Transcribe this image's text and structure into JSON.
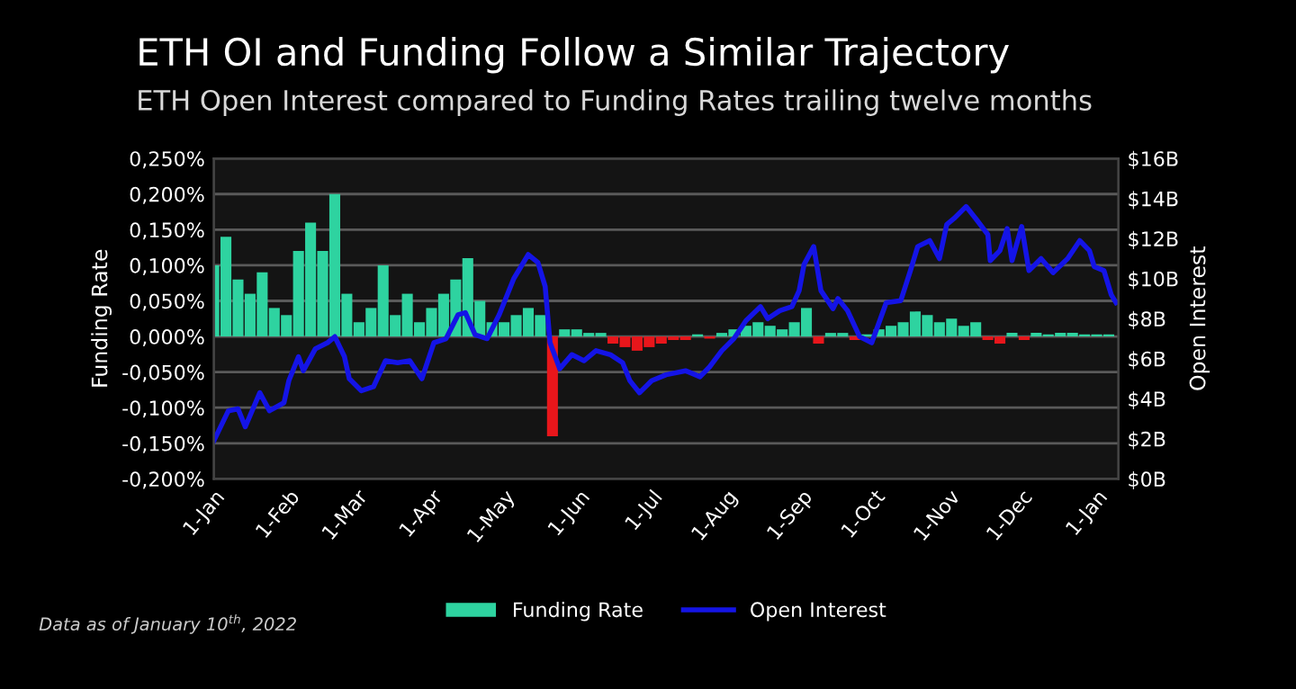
{
  "chart_data": {
    "type": "bar",
    "title": "ETH OI and Funding Follow a Similar Trajectory",
    "subtitle": "ETH Open Interest compared to Funding Rates trailing twelve months",
    "ylabel": "Funding Rate",
    "y2label": "Open Interest",
    "annotations": [
      "Data as of January 10$^{th}$, 2022"
    ],
    "xlim": [
      "2021-01-01",
      "2022-01-10"
    ],
    "xticks": [
      {
        "value": "2021-01-01",
        "label": "1-Jan"
      },
      {
        "value": "2021-02-01",
        "label": "1-Feb"
      },
      {
        "value": "2021-03-01",
        "label": "1-Mar"
      },
      {
        "value": "2021-04-01",
        "label": "1-Apr"
      },
      {
        "value": "2021-05-01",
        "label": "1-May"
      },
      {
        "value": "2021-06-01",
        "label": "1-Jun"
      },
      {
        "value": "2021-07-01",
        "label": "1-Jul"
      },
      {
        "value": "2021-08-01",
        "label": "1-Aug"
      },
      {
        "value": "2021-09-01",
        "label": "1-Sep"
      },
      {
        "value": "2021-10-01",
        "label": "1-Oct"
      },
      {
        "value": "2021-11-01",
        "label": "1-Nov"
      },
      {
        "value": "2021-12-01",
        "label": "1-Dec"
      },
      {
        "value": "2022-01-01",
        "label": "1-Jan"
      }
    ],
    "ylim": [
      -0.2,
      0.25
    ],
    "yticks": [
      {
        "value": -0.2,
        "label": "-0,200%"
      },
      {
        "value": -0.15,
        "label": "-0,150%"
      },
      {
        "value": -0.1,
        "label": "-0,100%"
      },
      {
        "value": -0.05,
        "label": "-0,050%"
      },
      {
        "value": 0,
        "label": "0,000%"
      },
      {
        "value": 0.05,
        "label": "0,050%"
      },
      {
        "value": 0.1,
        "label": "0,100%"
      },
      {
        "value": 0.15,
        "label": "0,150%"
      },
      {
        "value": 0.2,
        "label": "0,200%"
      },
      {
        "value": 0.25,
        "label": "0,250%"
      }
    ],
    "y2lim": [
      0,
      16
    ],
    "y2ticks": [
      {
        "value": 0,
        "label": "$0B"
      },
      {
        "value": 2,
        "label": "$2B"
      },
      {
        "value": 4,
        "label": "$4B"
      },
      {
        "value": 6,
        "label": "$6B"
      },
      {
        "value": 8,
        "label": "$8B"
      },
      {
        "value": 10,
        "label": "$10B"
      },
      {
        "value": 12,
        "label": "$12B"
      },
      {
        "value": 14,
        "label": "$14B"
      },
      {
        "value": 16,
        "label": "$16B"
      }
    ],
    "grid": "y",
    "legend": "bottom",
    "series": [
      {
        "name": "Funding Rate",
        "color": "#2ed3a0",
        "x": [
          "2021-01-01",
          "2021-01-06",
          "2021-01-11",
          "2021-01-16",
          "2021-01-21",
          "2021-01-26",
          "2021-01-31",
          "2021-02-05",
          "2021-02-10",
          "2021-02-15",
          "2021-02-20",
          "2021-02-25",
          "2021-03-02",
          "2021-03-07",
          "2021-03-12",
          "2021-03-17",
          "2021-03-22",
          "2021-03-27",
          "2021-04-01",
          "2021-04-06",
          "2021-04-11",
          "2021-04-16",
          "2021-04-21",
          "2021-04-26",
          "2021-05-01",
          "2021-05-06",
          "2021-05-11",
          "2021-05-16",
          "2021-05-21",
          "2021-05-26",
          "2021-05-31",
          "2021-06-05",
          "2021-06-10",
          "2021-06-15",
          "2021-06-20",
          "2021-06-25",
          "2021-06-30",
          "2021-07-05",
          "2021-07-10",
          "2021-07-15",
          "2021-07-20",
          "2021-07-25",
          "2021-07-30",
          "2021-08-04",
          "2021-08-09",
          "2021-08-14",
          "2021-08-19",
          "2021-08-24",
          "2021-08-29",
          "2021-09-03",
          "2021-09-08",
          "2021-09-13",
          "2021-09-18",
          "2021-09-23",
          "2021-09-28",
          "2021-10-03",
          "2021-10-08",
          "2021-10-13",
          "2021-10-18",
          "2021-10-23",
          "2021-10-28",
          "2021-11-02",
          "2021-11-07",
          "2021-11-12",
          "2021-11-17",
          "2021-11-22",
          "2021-11-27",
          "2021-12-02",
          "2021-12-07",
          "2021-12-12",
          "2021-12-17",
          "2021-12-22",
          "2021-12-27",
          "2022-01-01",
          "2022-01-06"
        ],
        "values": [
          0.1,
          0.14,
          0.08,
          0.06,
          0.09,
          0.04,
          0.03,
          0.12,
          0.16,
          0.12,
          0.2,
          0.06,
          0.02,
          0.04,
          0.1,
          0.03,
          0.06,
          0.02,
          0.04,
          0.06,
          0.08,
          0.11,
          0.05,
          0.02,
          0.02,
          0.03,
          0.04,
          0.03,
          -0.14,
          0.01,
          0.01,
          0.005,
          0.005,
          -0.01,
          -0.015,
          -0.02,
          -0.015,
          -0.01,
          -0.005,
          -0.005,
          0.003,
          -0.003,
          0.005,
          0.01,
          0.015,
          0.02,
          0.015,
          0.01,
          0.02,
          0.04,
          -0.01,
          0.005,
          0.005,
          -0.005,
          0.003,
          0.01,
          0.015,
          0.02,
          0.035,
          0.03,
          0.02,
          0.025,
          0.015,
          0.02,
          -0.005,
          -0.01,
          0.005,
          -0.005,
          0.005,
          0.003,
          0.005,
          0.005,
          0.003,
          0.003,
          0.003
        ],
        "colors": [
          "#2ed3a0",
          "#2ed3a0",
          "#2ed3a0",
          "#2ed3a0",
          "#2ed3a0",
          "#2ed3a0",
          "#2ed3a0",
          "#2ed3a0",
          "#2ed3a0",
          "#2ed3a0",
          "#2ed3a0",
          "#2ed3a0",
          "#2ed3a0",
          "#2ed3a0",
          "#2ed3a0",
          "#2ed3a0",
          "#2ed3a0",
          "#2ed3a0",
          "#2ed3a0",
          "#2ed3a0",
          "#2ed3a0",
          "#2ed3a0",
          "#2ed3a0",
          "#2ed3a0",
          "#2ed3a0",
          "#2ed3a0",
          "#2ed3a0",
          "#2ed3a0",
          "#e8161b",
          "#2ed3a0",
          "#2ed3a0",
          "#2ed3a0",
          "#2ed3a0",
          "#e8161b",
          "#e8161b",
          "#e8161b",
          "#e8161b",
          "#e8161b",
          "#e8161b",
          "#e8161b",
          "#2ed3a0",
          "#e8161b",
          "#2ed3a0",
          "#2ed3a0",
          "#2ed3a0",
          "#2ed3a0",
          "#2ed3a0",
          "#2ed3a0",
          "#2ed3a0",
          "#2ed3a0",
          "#e8161b",
          "#2ed3a0",
          "#2ed3a0",
          "#e8161b",
          "#2ed3a0",
          "#2ed3a0",
          "#2ed3a0",
          "#2ed3a0",
          "#2ed3a0",
          "#2ed3a0",
          "#2ed3a0",
          "#2ed3a0",
          "#2ed3a0",
          "#2ed3a0",
          "#e8161b",
          "#e8161b",
          "#2ed3a0",
          "#e8161b",
          "#2ed3a0",
          "#2ed3a0",
          "#2ed3a0",
          "#2ed3a0",
          "#2ed3a0",
          "#2ed3a0",
          "#2ed3a0"
        ]
      },
      {
        "name": "Open Interest",
        "type": "line",
        "axis": "y2",
        "color": "#1414e6",
        "x": [
          "2021-01-01",
          "2021-01-07",
          "2021-01-11",
          "2021-01-14",
          "2021-01-20",
          "2021-01-24",
          "2021-01-30",
          "2021-02-01",
          "2021-02-05",
          "2021-02-07",
          "2021-02-12",
          "2021-02-17",
          "2021-02-20",
          "2021-02-24",
          "2021-02-26",
          "2021-03-03",
          "2021-03-08",
          "2021-03-13",
          "2021-03-18",
          "2021-03-23",
          "2021-03-28",
          "2021-04-02",
          "2021-04-07",
          "2021-04-12",
          "2021-04-15",
          "2021-04-19",
          "2021-04-24",
          "2021-04-29",
          "2021-05-05",
          "2021-05-11",
          "2021-05-15",
          "2021-05-18",
          "2021-05-20",
          "2021-05-24",
          "2021-05-29",
          "2021-06-03",
          "2021-06-08",
          "2021-06-14",
          "2021-06-19",
          "2021-06-22",
          "2021-06-26",
          "2021-07-01",
          "2021-07-07",
          "2021-07-15",
          "2021-07-21",
          "2021-07-25",
          "2021-07-30",
          "2021-08-04",
          "2021-08-09",
          "2021-08-15",
          "2021-08-18",
          "2021-08-23",
          "2021-08-28",
          "2021-08-31",
          "2021-09-02",
          "2021-09-06",
          "2021-09-09",
          "2021-09-14",
          "2021-09-16",
          "2021-09-20",
          "2021-09-25",
          "2021-09-30",
          "2021-10-06",
          "2021-10-12",
          "2021-10-16",
          "2021-10-19",
          "2021-10-24",
          "2021-10-28",
          "2021-10-31",
          "2021-11-03",
          "2021-11-08",
          "2021-11-12",
          "2021-11-17",
          "2021-11-18",
          "2021-11-22",
          "2021-11-25",
          "2021-11-27",
          "2021-12-01",
          "2021-12-04",
          "2021-12-09",
          "2021-12-14",
          "2021-12-20",
          "2021-12-25",
          "2021-12-29",
          "2021-12-31",
          "2022-01-04",
          "2022-01-07",
          "2022-01-09"
        ],
        "values": [
          1.9,
          3.4,
          3.5,
          2.6,
          4.3,
          3.4,
          3.8,
          4.9,
          6.1,
          5.4,
          6.5,
          6.8,
          7.1,
          6.1,
          5.0,
          4.4,
          4.6,
          5.9,
          5.8,
          5.9,
          5.0,
          6.8,
          7.0,
          8.2,
          8.3,
          7.2,
          7.0,
          8.2,
          10.0,
          11.2,
          10.8,
          9.6,
          6.8,
          5.5,
          6.2,
          5.9,
          6.4,
          6.2,
          5.8,
          4.9,
          4.3,
          4.9,
          5.2,
          5.4,
          5.1,
          5.6,
          6.4,
          7.0,
          7.9,
          8.6,
          8.0,
          8.4,
          8.6,
          9.4,
          10.7,
          11.6,
          9.4,
          8.5,
          9.0,
          8.4,
          7.1,
          6.8,
          8.8,
          8.9,
          10.4,
          11.6,
          11.9,
          11.0,
          12.7,
          13.0,
          13.6,
          13.0,
          12.2,
          10.9,
          11.4,
          12.5,
          10.9,
          12.6,
          10.4,
          11.0,
          10.3,
          11.0,
          11.9,
          11.4,
          10.6,
          10.4,
          9.2,
          8.8
        ]
      }
    ]
  }
}
